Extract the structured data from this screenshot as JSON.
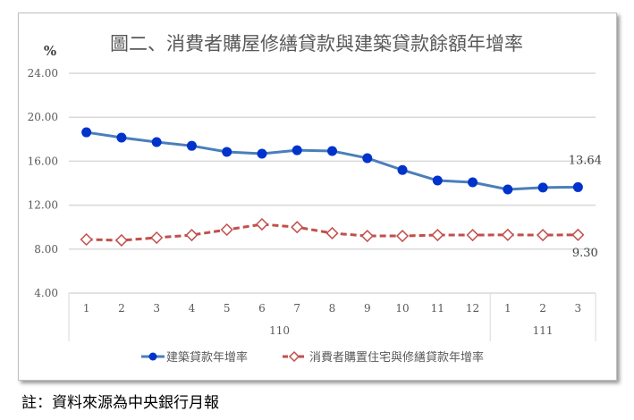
{
  "chart_data": {
    "type": "line",
    "title": "圖二、消費者購屋修繕貸款與建築貸款餘額年增率",
    "ylabel": "%",
    "ylim": [
      4,
      24
    ],
    "yticks": [
      "4.00",
      "8.00",
      "12.00",
      "16.00",
      "20.00",
      "24.00"
    ],
    "grid": true,
    "categories": [
      "1",
      "2",
      "3",
      "4",
      "5",
      "6",
      "7",
      "8",
      "9",
      "10",
      "11",
      "12",
      "1",
      "2",
      "3"
    ],
    "groups": [
      {
        "label": "110",
        "count": 12
      },
      {
        "label": "111",
        "count": 3
      }
    ],
    "legend_position": "bottom",
    "series": [
      {
        "name": "建築貸款年增率",
        "color": "#0033cc",
        "line_color": "#4a7ebb",
        "marker": "circle",
        "values": [
          18.63,
          18.15,
          17.74,
          17.4,
          16.85,
          16.68,
          17.0,
          16.93,
          16.28,
          15.2,
          14.24,
          14.08,
          13.43,
          13.6,
          13.64
        ],
        "end_label": "13.64"
      },
      {
        "name": "消費者購置住宅與修繕貸款年增率",
        "color": "#c0504d",
        "marker": "diamond",
        "values": [
          8.88,
          8.8,
          9.04,
          9.28,
          9.77,
          10.26,
          10.0,
          9.45,
          9.2,
          9.2,
          9.28,
          9.28,
          9.3,
          9.28,
          9.3
        ],
        "end_label": "9.30"
      }
    ]
  },
  "footnote": "註：資料來源為中央銀行月報"
}
